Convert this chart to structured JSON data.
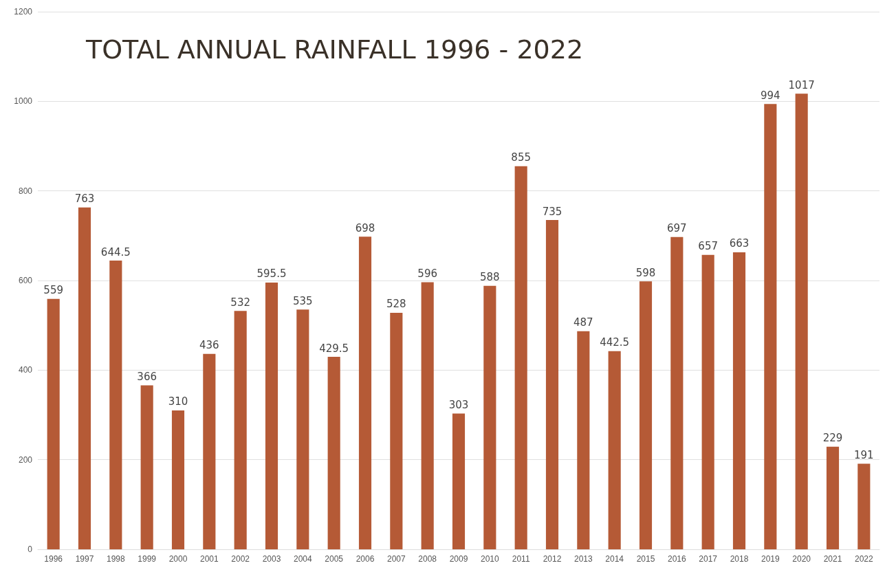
{
  "chart_data": {
    "type": "bar",
    "title": "TOTAL ANNUAL RAINFALL 1996 - 2022",
    "categories": [
      "1996",
      "1997",
      "1998",
      "1999",
      "2000",
      "2001",
      "2002",
      "2003",
      "2004",
      "2005",
      "2006",
      "2007",
      "2008",
      "2009",
      "2010",
      "2011",
      "2012",
      "2013",
      "2014",
      "2015",
      "2016",
      "2017",
      "2018",
      "2019",
      "2020",
      "2021",
      "2022"
    ],
    "values": [
      559,
      763,
      644.5,
      366,
      310,
      436,
      532,
      595.5,
      535,
      429.5,
      698,
      528,
      596,
      303,
      588,
      855,
      735,
      487,
      442.5,
      598,
      697,
      657,
      663,
      994,
      1017,
      229,
      191
    ],
    "color": "#b55a36",
    "ylim": [
      0,
      1200
    ],
    "yticks": [
      0,
      200,
      400,
      600,
      800,
      1000,
      1200
    ],
    "grid": "y",
    "data_labels": true
  }
}
